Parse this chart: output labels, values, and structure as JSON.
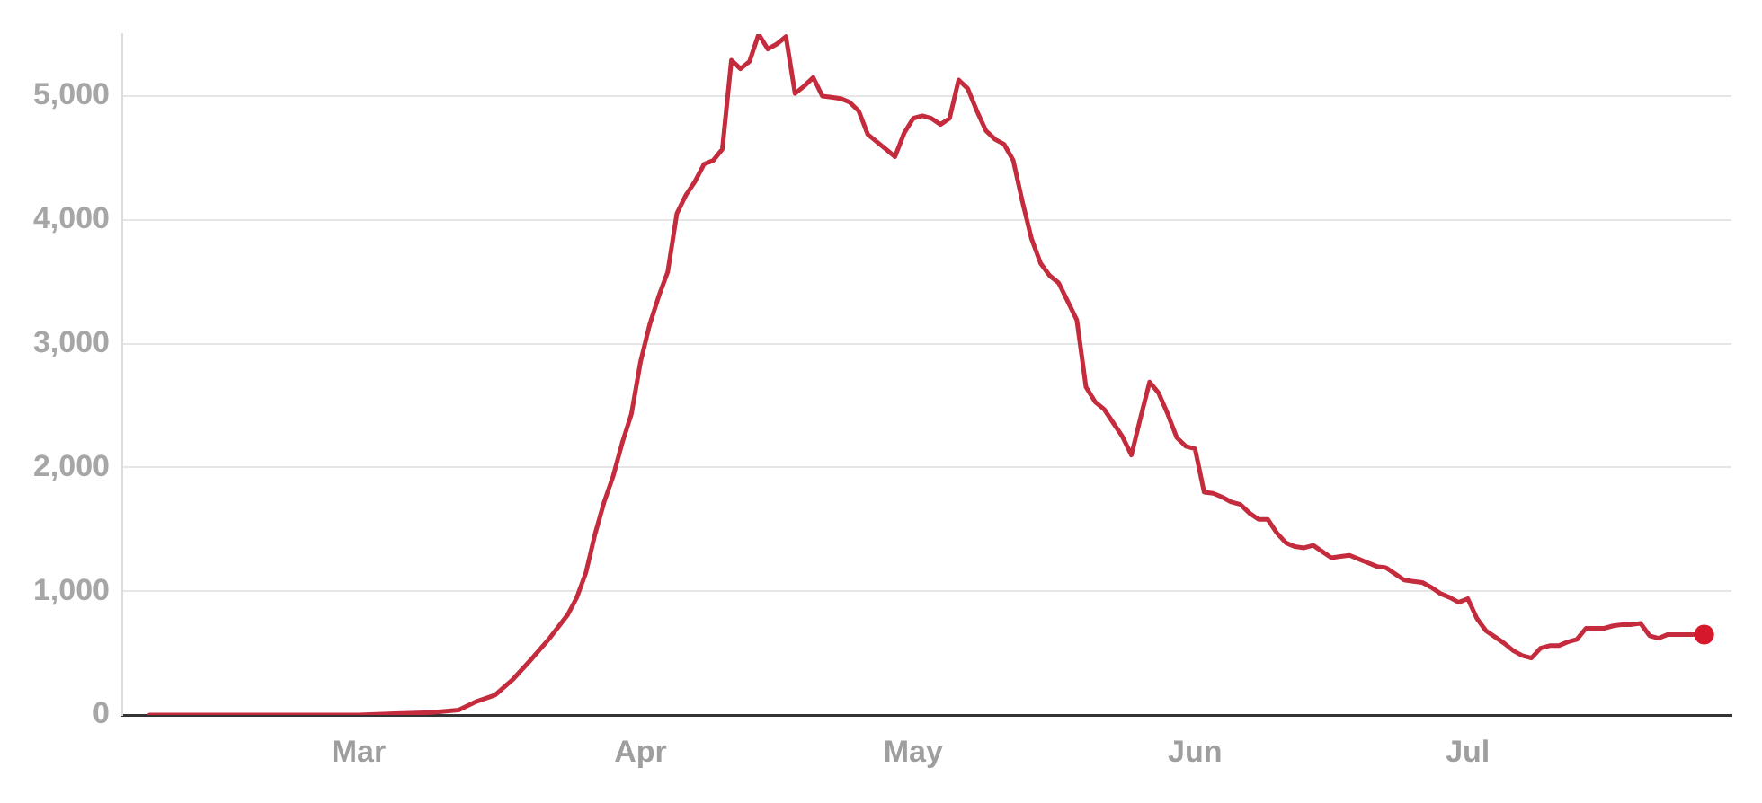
{
  "chart_data": {
    "type": "line",
    "x": [
      "--02-06",
      "--03-01",
      "--03-05",
      "--03-09",
      "--03-12",
      "--03-14",
      "--03-16",
      "--03-18",
      "--03-20",
      "--03-22",
      "--03-24",
      "--03-25",
      "--03-26",
      "--03-27",
      "--03-28",
      "--03-29",
      "--03-30",
      "--03-31",
      "--04-01",
      "--04-02",
      "--04-03",
      "--04-04",
      "--04-05",
      "--04-06",
      "--04-07",
      "--04-08",
      "--04-09",
      "--04-10",
      "--04-11",
      "--04-12",
      "--04-13",
      "--04-14",
      "--04-15",
      "--04-16",
      "--04-17",
      "--04-18",
      "--04-19",
      "--04-20",
      "--04-21",
      "--04-22",
      "--04-23",
      "--04-24",
      "--04-25",
      "--04-26",
      "--04-27",
      "--04-28",
      "--04-29",
      "--04-30",
      "--05-01",
      "--05-02",
      "--05-03",
      "--05-04",
      "--05-05",
      "--05-06",
      "--05-07",
      "--05-08",
      "--05-09",
      "--05-10",
      "--05-11",
      "--05-12",
      "--05-13",
      "--05-14",
      "--05-15",
      "--05-16",
      "--05-17",
      "--05-18",
      "--05-19",
      "--05-20",
      "--05-21",
      "--05-22",
      "--05-23",
      "--05-24",
      "--05-25",
      "--05-26",
      "--05-27",
      "--05-28",
      "--05-29",
      "--05-30",
      "--05-31",
      "--06-01",
      "--06-02",
      "--06-03",
      "--06-04",
      "--06-05",
      "--06-06",
      "--06-07",
      "--06-08",
      "--06-09",
      "--06-10",
      "--06-11",
      "--06-12",
      "--06-13",
      "--06-14",
      "--06-15",
      "--06-16",
      "--06-17",
      "--06-18",
      "--06-19",
      "--06-20",
      "--06-21",
      "--06-22",
      "--06-23",
      "--06-24",
      "--06-25",
      "--06-26",
      "--06-27",
      "--06-28",
      "--06-29",
      "--06-30",
      "--07-01",
      "--07-02",
      "--07-03",
      "--07-04",
      "--07-05",
      "--07-06",
      "--07-07",
      "--07-08",
      "--07-09",
      "--07-10",
      "--07-11",
      "--07-12",
      "--07-13",
      "--07-14",
      "--07-15",
      "--07-16",
      "--07-17",
      "--07-18",
      "--07-19",
      "--07-20",
      "--07-21",
      "--07-22",
      "--07-23",
      "--07-24",
      "--07-25",
      "--07-26",
      "--07-27"
    ],
    "series": [
      {
        "color": "#c42b3c",
        "values": [
          0,
          0,
          10,
          20,
          40,
          110,
          160,
          290,
          450,
          620,
          810,
          950,
          1150,
          1460,
          1720,
          1930,
          2200,
          2430,
          2850,
          3150,
          3380,
          3580,
          4050,
          4200,
          4310,
          4450,
          4480,
          4570,
          5290,
          5220,
          5280,
          5500,
          5380,
          5420,
          5480,
          5020,
          5080,
          5150,
          5000,
          4990,
          4980,
          4950,
          4880,
          4690,
          4630,
          4570,
          4510,
          4700,
          4820,
          4840,
          4820,
          4770,
          4820,
          5130,
          5060,
          4880,
          4720,
          4650,
          4610,
          4480,
          4150,
          3850,
          3650,
          3550,
          3490,
          3340,
          3190,
          2650,
          2530,
          2470,
          2360,
          2250,
          2100,
          2400,
          2690,
          2600,
          2430,
          2240,
          2170,
          2150,
          1800,
          1790,
          1760,
          1720,
          1700,
          1630,
          1580,
          1580,
          1470,
          1390,
          1360,
          1350,
          1370,
          1320,
          1270,
          1280,
          1290,
          1260,
          1230,
          1200,
          1190,
          1140,
          1090,
          1080,
          1070,
          1030,
          980,
          950,
          910,
          940,
          780,
          680,
          630,
          580,
          520,
          480,
          460,
          540,
          560,
          560,
          590,
          610,
          700,
          700,
          700,
          720,
          730,
          730,
          740,
          640,
          620,
          650,
          650,
          650,
          650,
          650
        ]
      },
      {
        "type": "scatter",
        "x": [
          "--07-27"
        ],
        "color": "#d6182b",
        "marker": "circle",
        "values": [
          650
        ]
      }
    ],
    "xlim": [
      "--02-03",
      "--07-30"
    ],
    "xticks": [
      {
        "value": "--03-01",
        "label": "Mar"
      },
      {
        "value": "--04-01",
        "label": "Apr"
      },
      {
        "value": "--05-01",
        "label": "May"
      },
      {
        "value": "--06-01",
        "label": "Jun"
      },
      {
        "value": "--07-01",
        "label": "Jul"
      }
    ],
    "ylim": [
      0,
      5500
    ],
    "yticks": [
      0,
      {
        "value": 1000,
        "label": "1,000"
      },
      {
        "value": 2000,
        "label": "2,000"
      },
      {
        "value": 3000,
        "label": "3,000"
      },
      {
        "value": 4000,
        "label": "4,000"
      },
      {
        "value": 5000,
        "label": "5,000"
      }
    ],
    "grid": "y",
    "legend": false,
    "marker": "none",
    "line_style": "solid"
  }
}
